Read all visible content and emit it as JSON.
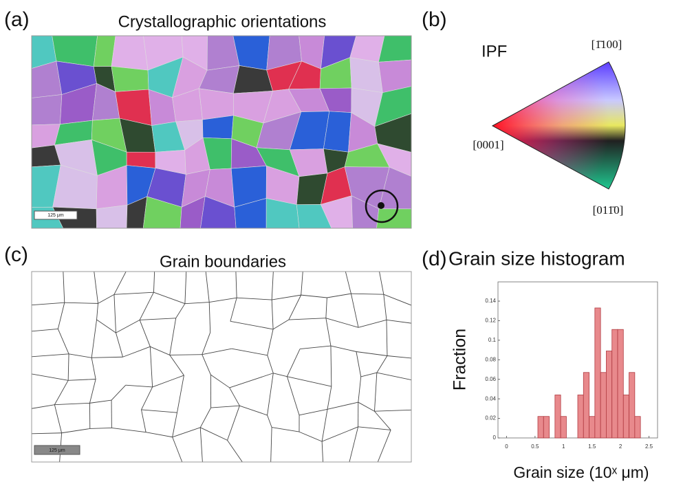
{
  "panel_a": {
    "label": "(a)",
    "title": "Crystallographic orientations",
    "scale_bar": "125 μm"
  },
  "panel_b": {
    "label": "(b)",
    "title": "IPF",
    "corners": [
      "[1̄100]",
      "[0001]",
      "[011̄0]"
    ]
  },
  "panel_c": {
    "label": "(c)",
    "title": "Grain boundaries",
    "scale_bar": "125 μm"
  },
  "chart_data": {
    "type": "histogram",
    "label": "(d)",
    "title": "Grain size histogram",
    "x_label": "Grain size (10ˣ μm)",
    "y_label": "Fraction",
    "bins": [
      0.55,
      0.65,
      0.75,
      0.85,
      0.95,
      1.05,
      1.15,
      1.25,
      1.35,
      1.45,
      1.55,
      1.65,
      1.75,
      1.85,
      1.95,
      2.05,
      2.15,
      2.25,
      2.35
    ],
    "values": [
      0.022,
      0.022,
      0,
      0.044,
      0.022,
      0,
      0,
      0.044,
      0.067,
      0.022,
      0.133,
      0.067,
      0.089,
      0.111,
      0.111,
      0.044,
      0.067,
      0.022
    ],
    "color": "#e8898c",
    "edge_color": "#b03a40",
    "xlim": [
      -0.15,
      2.65
    ],
    "ylim": [
      0,
      0.14
    ],
    "xticks": [
      0,
      0.5,
      1,
      1.5,
      2,
      2.5
    ],
    "yticks": [
      0,
      0.02,
      0.04,
      0.06,
      0.08,
      0.1,
      0.12,
      0.14
    ]
  }
}
